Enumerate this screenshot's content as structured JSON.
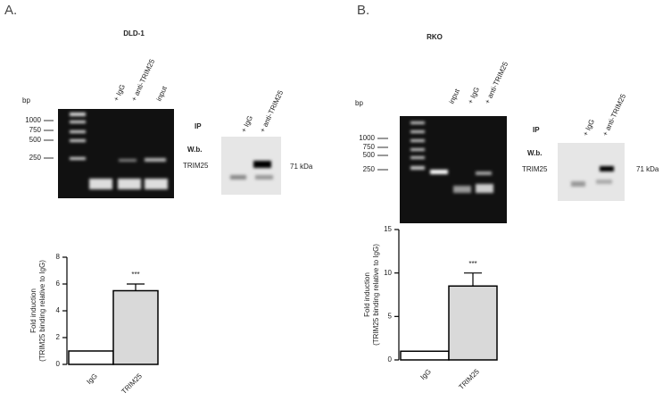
{
  "panels": [
    {
      "label": "A.",
      "cell_line": "DLD-1",
      "bp": "bp",
      "markers": [
        "1000",
        "750",
        "500",
        "250"
      ],
      "gel_lanes": [
        "+ IgG",
        "+ anti-TRIM25",
        "input"
      ],
      "ip": "IP",
      "wb": "W.b.",
      "protein": "TRIM25",
      "wb_lanes": [
        "+ IgG",
        "+ anti-TRIM25"
      ],
      "size": "71 kDa"
    },
    {
      "label": "B.",
      "cell_line": "RKO",
      "bp": "bp",
      "markers": [
        "1000",
        "750",
        "500",
        "250"
      ],
      "gel_lanes": [
        "input",
        "+ IgG",
        "+ anti-TRIM25"
      ],
      "ip": "IP",
      "wb": "W.b.",
      "protein": "TRIM25",
      "wb_lanes": [
        "+ IgG",
        "+ anti-TRIM25"
      ],
      "size": "71 kDa"
    }
  ],
  "chart_data": [
    {
      "type": "bar",
      "ylabel": [
        "Fold induction",
        "(TRIM25 binding relative to IgG)"
      ],
      "categories": [
        "IgG",
        "TRIM25"
      ],
      "values": [
        1,
        5.5
      ],
      "errors": [
        null,
        0.5
      ],
      "colors": [
        "#ffffff",
        "#d9d9d9"
      ],
      "ylim": [
        0,
        8
      ],
      "yticks": [
        0,
        2,
        4,
        6,
        8
      ],
      "annotations": [
        {
          "category": "TRIM25",
          "text": "***"
        }
      ]
    },
    {
      "type": "bar",
      "ylabel": [
        "Fold induction",
        "(TRIM25 binding relative to IgG)"
      ],
      "categories": [
        "IgG",
        "TRIM25"
      ],
      "values": [
        1,
        8.5
      ],
      "errors": [
        null,
        1.5
      ],
      "colors": [
        "#ffffff",
        "#d9d9d9"
      ],
      "ylim": [
        0,
        15
      ],
      "yticks": [
        0,
        5,
        10,
        15
      ],
      "annotations": [
        {
          "category": "TRIM25",
          "text": "***"
        }
      ]
    }
  ]
}
